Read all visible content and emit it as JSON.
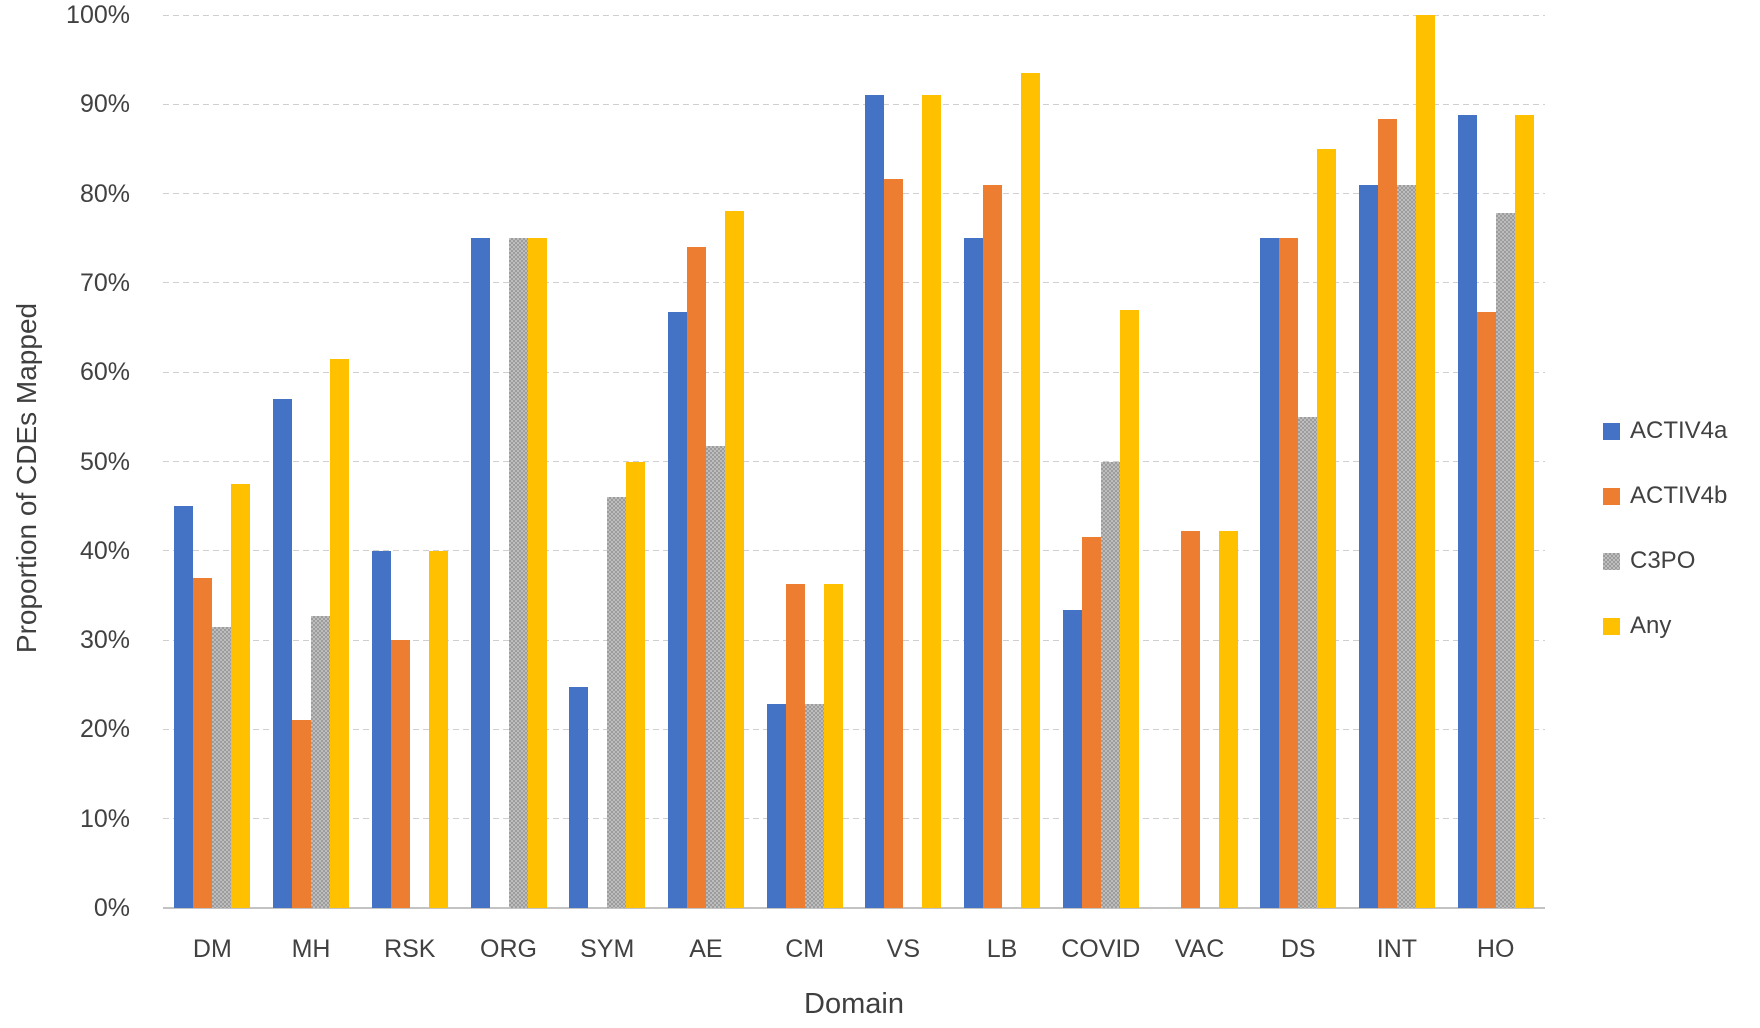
{
  "figure": {
    "background": "#ffffff"
  },
  "chart_data": {
    "type": "bar",
    "title": "",
    "xlabel": "Domain",
    "ylabel": "Proportion of CDEs Mapped",
    "categories": [
      "DM",
      "MH",
      "RSK",
      "ORG",
      "SYM",
      "AE",
      "CM",
      "VS",
      "LB",
      "COVID",
      "VAC",
      "DS",
      "INT",
      "HO"
    ],
    "series": [
      {
        "name": "ACTIV4a",
        "color": "#4472C4",
        "pattern": "solid",
        "values": [
          45,
          57,
          40,
          75,
          24.7,
          66.7,
          22.8,
          91,
          75,
          33.4,
          null,
          75,
          81,
          88.8
        ]
      },
      {
        "name": "ACTIV4b",
        "color": "#ED7D31",
        "pattern": "solid",
        "values": [
          37,
          21,
          30,
          null,
          null,
          74,
          36.3,
          81.6,
          81,
          41.5,
          42.2,
          75,
          88.4,
          66.7
        ]
      },
      {
        "name": "C3PO",
        "color": "#A6A6A6",
        "pattern": "checker",
        "values": [
          31.5,
          32.7,
          null,
          75,
          46,
          51.7,
          22.8,
          null,
          null,
          50,
          null,
          55,
          81,
          77.8
        ]
      },
      {
        "name": "Any",
        "color": "#FFC000",
        "pattern": "solid",
        "values": [
          47.5,
          61.5,
          40,
          75,
          50,
          78,
          36.3,
          91,
          93.5,
          67,
          42.2,
          85,
          100,
          88.8
        ]
      }
    ],
    "y_ticks": [
      "0%",
      "10%",
      "20%",
      "30%",
      "40%",
      "50%",
      "60%",
      "70%",
      "80%",
      "90%",
      "100%"
    ],
    "ylim": [
      0,
      100
    ],
    "grid": "horizontal-dashed",
    "legend_position": "right",
    "legend_labels": [
      "ACTIV4a",
      "ACTIV4b",
      "C3PO",
      "Any"
    ]
  }
}
